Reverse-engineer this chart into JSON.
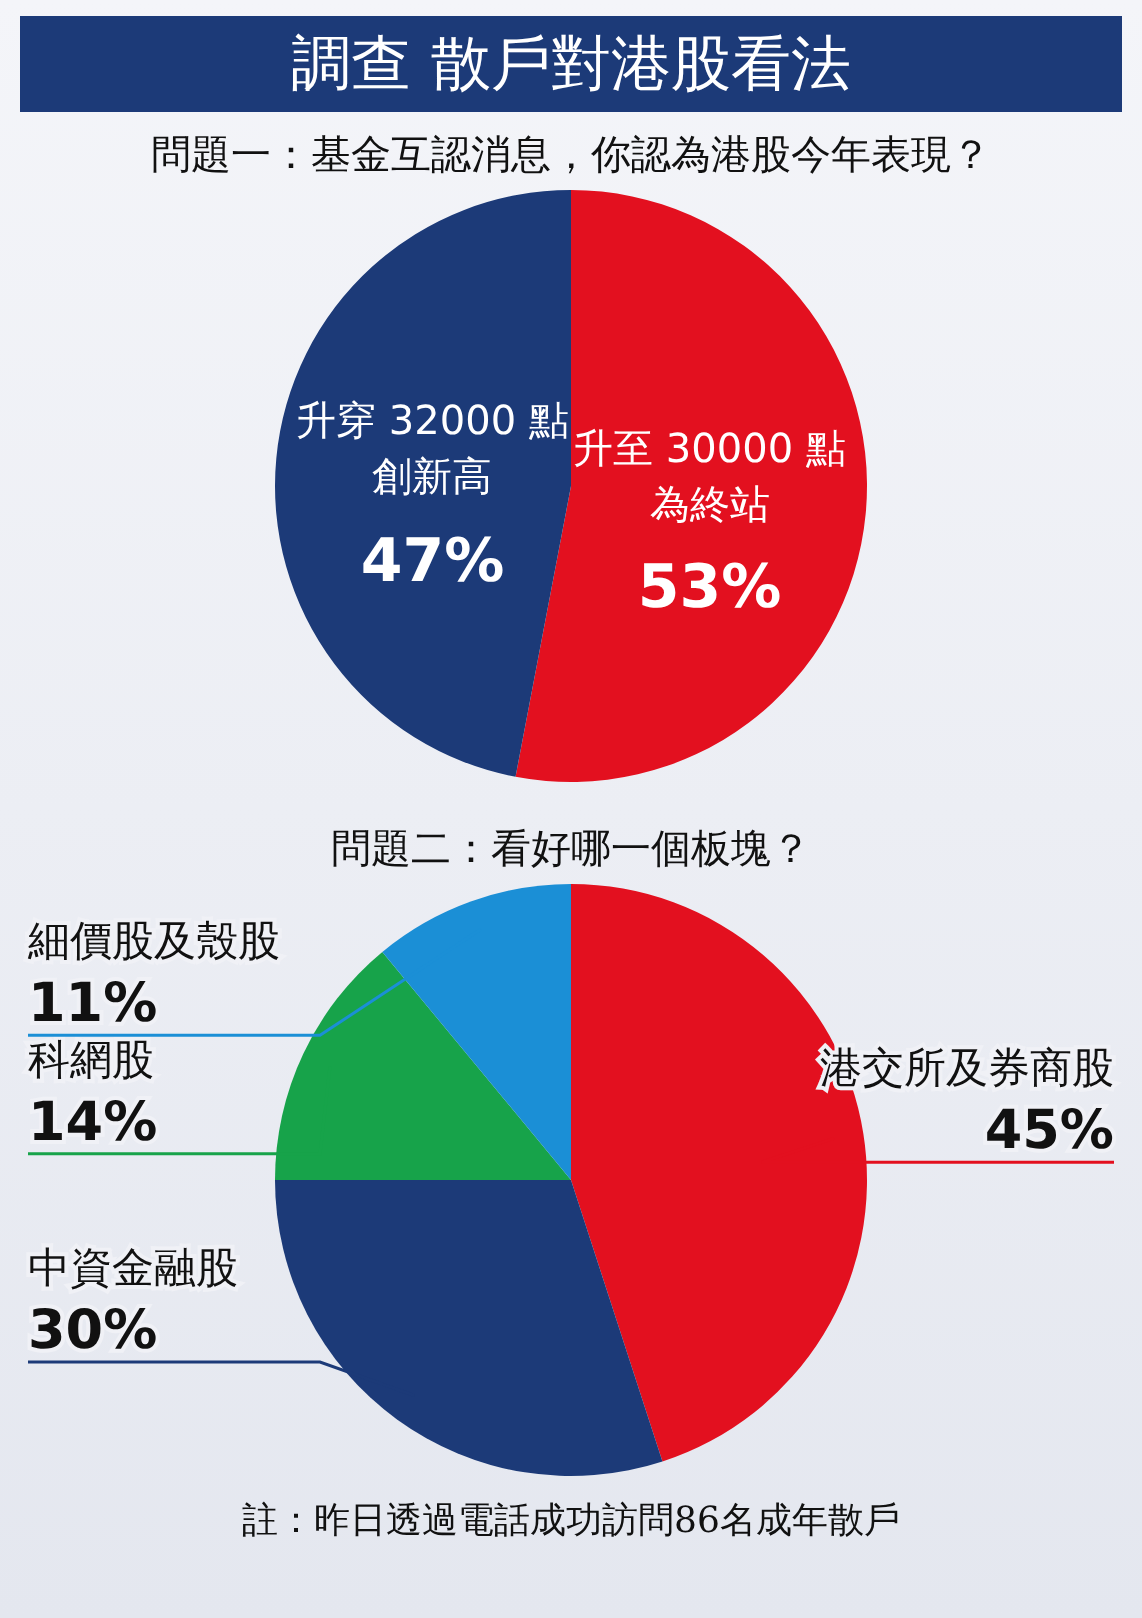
{
  "chart_data": [
    {
      "type": "pie",
      "title": "調查 散戶對港股看法",
      "subtitle": "問題一：基金互認消息，你認為港股今年表現？",
      "categories": [
        "升至 30000 點為終站",
        "升穿 32000 點創新高"
      ],
      "values": [
        53,
        47
      ],
      "value_labels": [
        "53%",
        "47%"
      ],
      "colors": [
        "#e3101f",
        "#1c3a78"
      ]
    },
    {
      "type": "pie",
      "subtitle": "問題二：看好哪一個板塊？",
      "categories": [
        "港交所及券商股",
        "中資金融股",
        "科網股",
        "細價股及殼股"
      ],
      "values": [
        45,
        30,
        14,
        11
      ],
      "value_labels": [
        "45%",
        "30%",
        "14%",
        "11%"
      ],
      "colors": [
        "#e3101f",
        "#1c3a78",
        "#17a34a",
        "#1b8fd6"
      ],
      "annotations": [
        "註：昨日透過電話成功訪問86名成年散戶"
      ]
    }
  ]
}
